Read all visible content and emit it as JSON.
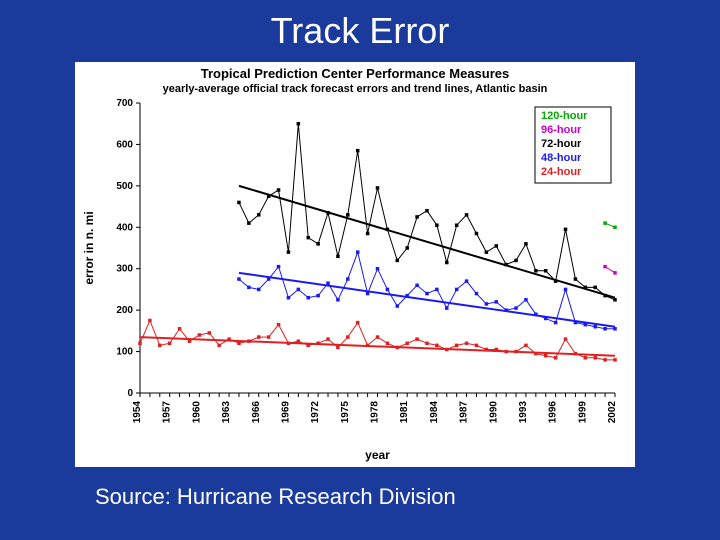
{
  "slide": {
    "title": "Track Error",
    "source": "Source: Hurricane Research Division",
    "background_color": "#1a3a9c",
    "title_color": "#ffffff",
    "title_fontsize": 36
  },
  "chart": {
    "type": "line",
    "title": "Tropical Prediction Center Performance Measures",
    "subtitle": "yearly-average official track forecast errors and trend lines, Atlantic basin",
    "title_fontsize": 13,
    "subtitle_fontsize": 11,
    "panel_background": "#ffffff",
    "plot_background": "#ffffff",
    "grid_color": "#000000",
    "axis_color": "#000000",
    "x_label": "year",
    "y_label": "error in n. mi",
    "label_fontsize": 12,
    "tick_fontsize": 10,
    "ylim": [
      0,
      700
    ],
    "ytick_step": 100,
    "yticks": [
      0,
      100,
      200,
      300,
      400,
      500,
      600,
      700
    ],
    "xlim": [
      1954,
      2002
    ],
    "xticks": [
      1954,
      1957,
      1960,
      1963,
      1966,
      1969,
      1972,
      1975,
      1978,
      1981,
      1984,
      1987,
      1990,
      1993,
      1996,
      1999,
      2002
    ],
    "x_tick_rotation": -90,
    "marker_style": "square",
    "marker_size": 3.5,
    "line_width": 1,
    "trend_line_width": 2,
    "legend": {
      "position": "top-right-inside",
      "items": [
        {
          "label": "120-hour",
          "color": "#00aa00"
        },
        {
          "label": "96-hour",
          "color": "#cc00cc"
        },
        {
          "label": "72-hour",
          "color": "#000000"
        },
        {
          "label": "48-hour",
          "color": "#1a1af0"
        },
        {
          "label": "24-hour",
          "color": "#e02020"
        }
      ],
      "fontsize": 11,
      "border_color": "#000000",
      "background": "#ffffff"
    },
    "series": [
      {
        "name": "24-hour",
        "color": "#e02020",
        "years": [
          1954,
          1955,
          1956,
          1957,
          1958,
          1959,
          1960,
          1961,
          1962,
          1963,
          1964,
          1965,
          1966,
          1967,
          1968,
          1969,
          1970,
          1971,
          1972,
          1973,
          1974,
          1975,
          1976,
          1977,
          1978,
          1979,
          1980,
          1981,
          1982,
          1983,
          1984,
          1985,
          1986,
          1987,
          1988,
          1989,
          1990,
          1991,
          1992,
          1993,
          1994,
          1995,
          1996,
          1997,
          1998,
          1999,
          2000,
          2001,
          2002
        ],
        "values": [
          120,
          175,
          115,
          120,
          155,
          125,
          140,
          145,
          115,
          130,
          120,
          125,
          135,
          135,
          165,
          120,
          125,
          115,
          120,
          130,
          110,
          135,
          170,
          115,
          135,
          120,
          110,
          120,
          130,
          120,
          115,
          105,
          115,
          120,
          115,
          105,
          105,
          100,
          100,
          115,
          95,
          90,
          85,
          130,
          95,
          85,
          85,
          80,
          80
        ],
        "trend": {
          "start_year": 1954,
          "start_value": 135,
          "end_year": 2002,
          "end_value": 90
        }
      },
      {
        "name": "48-hour",
        "color": "#1a1af0",
        "years": [
          1964,
          1965,
          1966,
          1967,
          1968,
          1969,
          1970,
          1971,
          1972,
          1973,
          1974,
          1975,
          1976,
          1977,
          1978,
          1979,
          1980,
          1981,
          1982,
          1983,
          1984,
          1985,
          1986,
          1987,
          1988,
          1989,
          1990,
          1991,
          1992,
          1993,
          1994,
          1995,
          1996,
          1997,
          1998,
          1999,
          2000,
          2001,
          2002
        ],
        "values": [
          275,
          255,
          250,
          275,
          305,
          230,
          250,
          230,
          235,
          265,
          225,
          275,
          340,
          240,
          300,
          250,
          210,
          235,
          260,
          240,
          250,
          205,
          250,
          270,
          240,
          215,
          220,
          200,
          205,
          225,
          190,
          180,
          170,
          250,
          170,
          165,
          160,
          155,
          155
        ],
        "trend": {
          "start_year": 1964,
          "start_value": 290,
          "end_year": 2002,
          "end_value": 160
        }
      },
      {
        "name": "72-hour",
        "color": "#000000",
        "years": [
          1964,
          1965,
          1966,
          1967,
          1968,
          1969,
          1970,
          1971,
          1972,
          1973,
          1974,
          1975,
          1976,
          1977,
          1978,
          1979,
          1980,
          1981,
          1982,
          1983,
          1984,
          1985,
          1986,
          1987,
          1988,
          1989,
          1990,
          1991,
          1992,
          1993,
          1994,
          1995,
          1996,
          1997,
          1998,
          1999,
          2000,
          2001,
          2002
        ],
        "values": [
          460,
          410,
          430,
          475,
          490,
          340,
          650,
          375,
          360,
          435,
          330,
          430,
          585,
          385,
          495,
          395,
          320,
          350,
          425,
          440,
          405,
          315,
          405,
          430,
          385,
          340,
          355,
          310,
          320,
          360,
          295,
          295,
          270,
          395,
          275,
          255,
          255,
          235,
          225
        ],
        "trend": {
          "start_year": 1964,
          "start_value": 500,
          "end_year": 2002,
          "end_value": 230
        }
      },
      {
        "name": "96-hour",
        "color": "#cc00cc",
        "years": [
          2001,
          2002
        ],
        "values": [
          305,
          290
        ]
      },
      {
        "name": "120-hour",
        "color": "#00aa00",
        "years": [
          2001,
          2002
        ],
        "values": [
          410,
          400
        ]
      }
    ]
  }
}
